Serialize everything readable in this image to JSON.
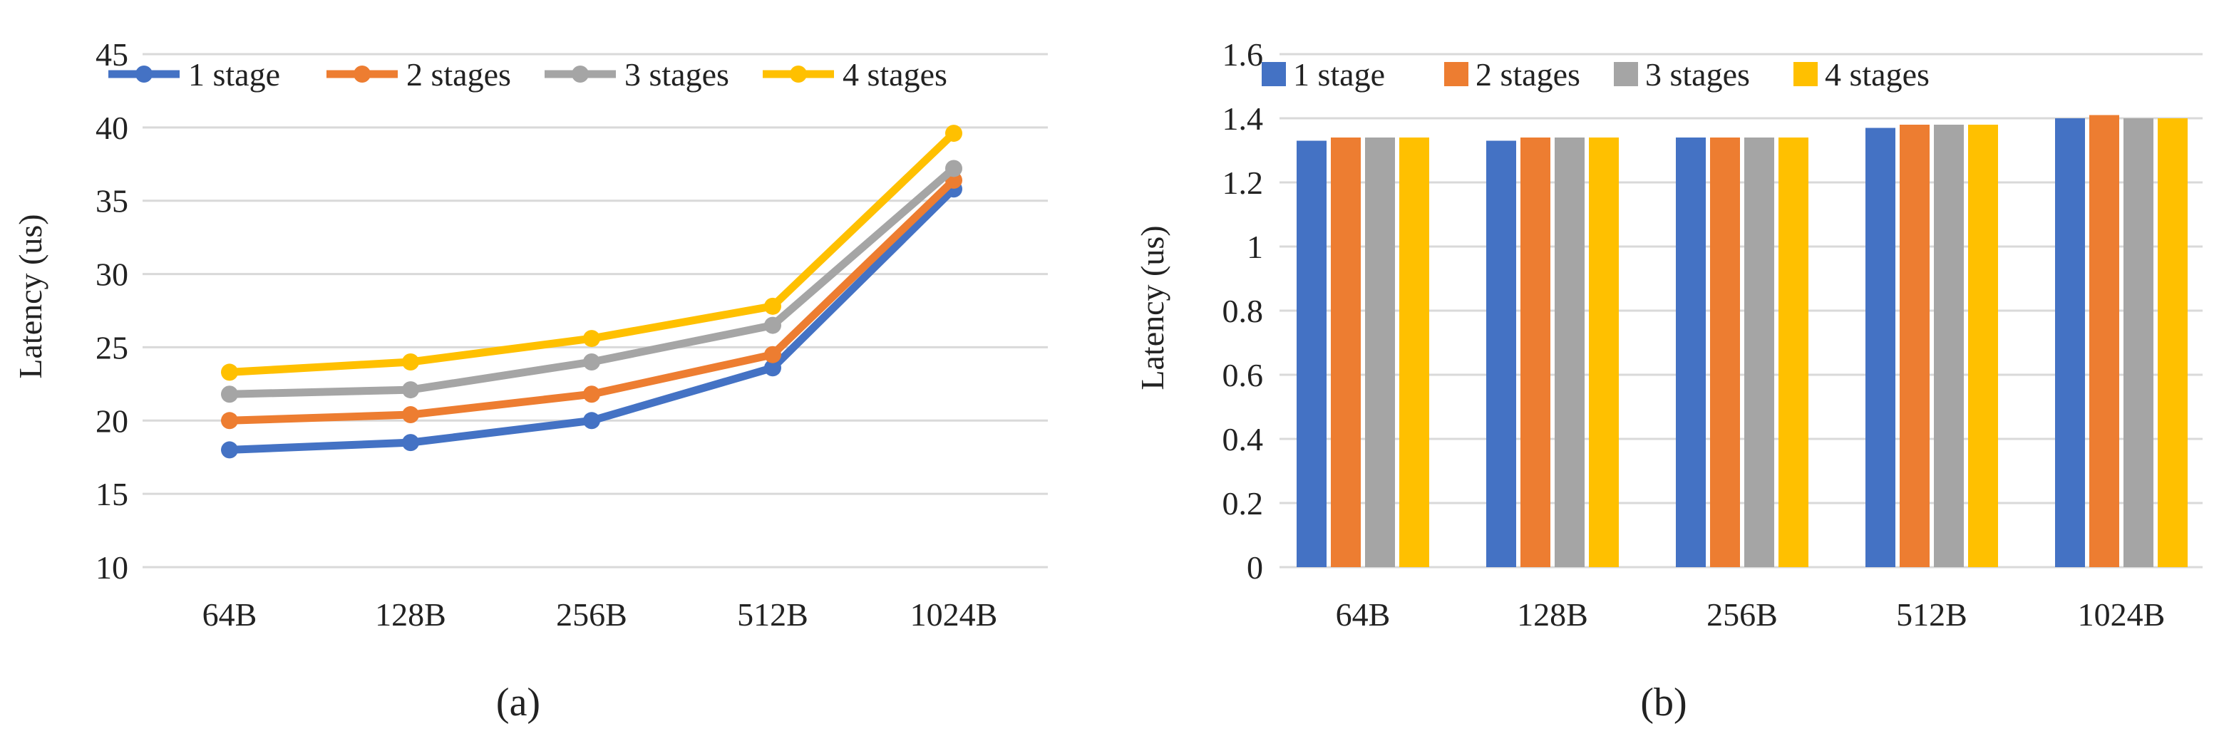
{
  "chart_data": [
    {
      "type": "line",
      "caption": "(a)",
      "ylabel": "Latency (us)",
      "xlabel": "",
      "ylim": [
        10,
        45
      ],
      "yticks": [
        10,
        15,
        20,
        25,
        30,
        35,
        40,
        45
      ],
      "categories": [
        "64B",
        "128B",
        "256B",
        "512B",
        "1024B"
      ],
      "legend_position": "top",
      "series": [
        {
          "name": "1 stage",
          "color": "#4472c4",
          "values": [
            18.0,
            18.5,
            20.0,
            23.6,
            35.8
          ]
        },
        {
          "name": "2 stages",
          "color": "#ed7d31",
          "values": [
            20.0,
            20.4,
            21.8,
            24.5,
            36.4
          ]
        },
        {
          "name": "3 stages",
          "color": "#a5a5a5",
          "values": [
            21.8,
            22.1,
            24.0,
            26.5,
            37.2
          ]
        },
        {
          "name": "4 stages",
          "color": "#ffc000",
          "values": [
            23.3,
            24.0,
            25.6,
            27.8,
            39.6
          ]
        }
      ]
    },
    {
      "type": "bar",
      "caption": "(b)",
      "ylabel": "Latency (us)",
      "xlabel": "",
      "ylim": [
        0,
        1.6
      ],
      "yticks": [
        "0",
        "0.2",
        "0.4",
        "0.6",
        "0.8",
        "1",
        "1.2",
        "1.4",
        "1.6"
      ],
      "categories": [
        "64B",
        "128B",
        "256B",
        "512B",
        "1024B"
      ],
      "legend_position": "top",
      "series": [
        {
          "name": "1 stage",
          "color": "#4472c4",
          "values": [
            1.33,
            1.33,
            1.34,
            1.37,
            1.4
          ]
        },
        {
          "name": "2 stages",
          "color": "#ed7d31",
          "values": [
            1.34,
            1.34,
            1.34,
            1.38,
            1.41
          ]
        },
        {
          "name": "3 stages",
          "color": "#a5a5a5",
          "values": [
            1.34,
            1.34,
            1.34,
            1.38,
            1.4
          ]
        },
        {
          "name": "4 stages",
          "color": "#ffc000",
          "values": [
            1.34,
            1.34,
            1.34,
            1.38,
            1.4
          ]
        }
      ]
    }
  ]
}
